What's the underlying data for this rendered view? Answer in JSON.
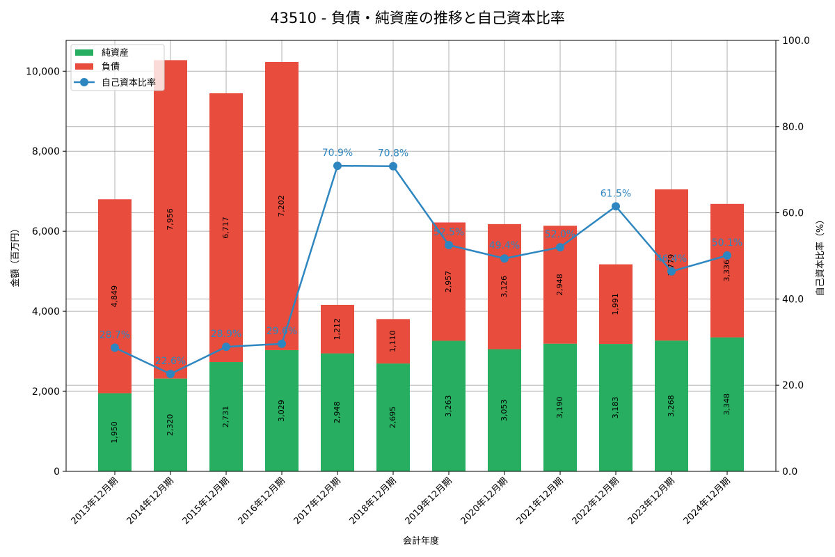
{
  "chart_data": {
    "type": "bar",
    "subtype": "stacked-bar-with-line-secondary-axis",
    "title": "43510 - 負債・純資産の推移と自己資本比率",
    "xlabel": "会計年度",
    "ylabel": "金額（百万円）",
    "y2label": "自己資本比率（%）",
    "categories": [
      "2013年12月期",
      "2014年12月期",
      "2015年12月期",
      "2016年12月期",
      "2017年12月期",
      "2018年12月期",
      "2019年12月期",
      "2020年12月期",
      "2021年12月期",
      "2022年12月期",
      "2023年12月期",
      "2024年12月期"
    ],
    "series": [
      {
        "name": "純資産",
        "type": "bar",
        "stack": "total",
        "axis": "left",
        "color": "#27ae60",
        "values": [
          1950,
          2320,
          2731,
          3029,
          2948,
          2695,
          3263,
          3053,
          3190,
          3183,
          3268,
          3348
        ],
        "labels": [
          "1,950",
          "2,320",
          "2,731",
          "3,029",
          "2,948",
          "2,695",
          "3,263",
          "3,053",
          "3,190",
          "3,183",
          "3,268",
          "3,348"
        ]
      },
      {
        "name": "負債",
        "type": "bar",
        "stack": "total",
        "axis": "left",
        "color": "#e74c3c",
        "values": [
          4849,
          7956,
          6717,
          7202,
          1212,
          1110,
          2957,
          3126,
          2948,
          1991,
          3779,
          3336
        ],
        "labels": [
          "4,849",
          "7,956",
          "6,717",
          "7,202",
          "1,212",
          "1,110",
          "2,957",
          "3,126",
          "2,948",
          "1,991",
          "3,779",
          "3,336"
        ]
      },
      {
        "name": "自己資本比率",
        "type": "line",
        "axis": "right",
        "color": "#2e86c1",
        "values": [
          28.7,
          22.6,
          28.9,
          29.6,
          70.9,
          70.8,
          52.5,
          49.4,
          52.0,
          61.5,
          46.4,
          50.1
        ],
        "labels": [
          "28.7%",
          "22.6%",
          "28.9%",
          "29.6%",
          "70.9%",
          "70.8%",
          "52.5%",
          "49.4%",
          "52.0%",
          "61.5%",
          "46.4%",
          "50.1%"
        ]
      }
    ],
    "ylim": [
      0,
      10770
    ],
    "y2lim": [
      0,
      100
    ],
    "yticks": [
      0,
      2000,
      4000,
      6000,
      8000,
      10000
    ],
    "ytick_labels": [
      "0",
      "2,000",
      "4,000",
      "6,000",
      "8,000",
      "10,000"
    ],
    "y2ticks": [
      0,
      20,
      40,
      60,
      80,
      100
    ],
    "y2tick_labels": [
      "0.0",
      "20.0",
      "40.0",
      "60.0",
      "80.0",
      "100.0"
    ],
    "grid": true,
    "legend": {
      "position": "upper left",
      "entries": [
        "純資産",
        "負債",
        "自己資本比率"
      ]
    }
  }
}
